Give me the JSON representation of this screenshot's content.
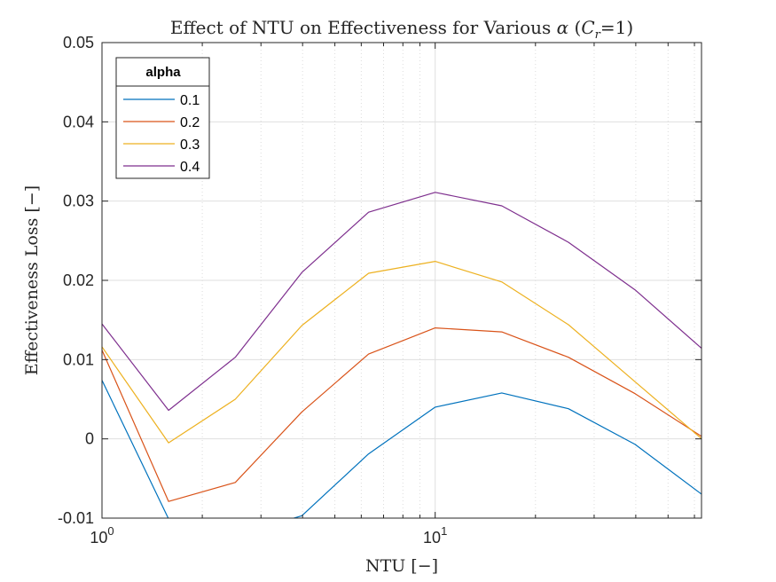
{
  "chart_data": {
    "type": "line",
    "title_main": "Effect of NTU on Effectiveness for Various ",
    "title_alpha": "α",
    "title_open": " (",
    "title_c": "C",
    "title_sub": "r",
    "title_close": "=1)",
    "xlabel": "NTU [−]",
    "ylabel": "Effectiveness Loss [−]",
    "xscale": "log",
    "xlim": [
      1,
      63
    ],
    "ylim": [
      -0.01,
      0.05
    ],
    "yticks": [
      -0.01,
      0,
      0.01,
      0.02,
      0.03,
      0.04,
      0.05
    ],
    "ytick_labels": [
      "-0.01",
      "0",
      "0.01",
      "0.02",
      "0.03",
      "0.04",
      "0.05"
    ],
    "xtick_labels": [
      {
        "value": 1,
        "base": "10",
        "exp": "0"
      },
      {
        "value": 10,
        "base": "10",
        "exp": "1"
      }
    ],
    "grid": true,
    "legend": {
      "title": "alpha",
      "location": "top-left"
    },
    "x": [
      1,
      1.585,
      2.512,
      3.981,
      6.31,
      10,
      15.85,
      25.12,
      39.81,
      63.1
    ],
    "series": [
      {
        "name": "0.1",
        "color": "#0072BD",
        "values": [
          0.0074,
          -0.0101,
          -0.0122,
          -0.0097,
          -0.0019,
          0.004,
          0.0058,
          0.0038,
          -0.0007,
          -0.007
        ]
      },
      {
        "name": "0.2",
        "color": "#D95319",
        "values": [
          0.0112,
          -0.0079,
          -0.0055,
          0.0034,
          0.0107,
          0.014,
          0.0135,
          0.0103,
          0.0057,
          0.0003
        ]
      },
      {
        "name": "0.3",
        "color": "#EDB120",
        "values": [
          0.0116,
          -0.0005,
          0.005,
          0.0143,
          0.0209,
          0.0224,
          0.0198,
          0.0144,
          0.0072,
          0.0
        ]
      },
      {
        "name": "0.4",
        "color": "#7E2F8E",
        "values": [
          0.0145,
          0.0036,
          0.0103,
          0.021,
          0.0286,
          0.0311,
          0.0294,
          0.0248,
          0.0188,
          0.0114
        ]
      }
    ]
  }
}
